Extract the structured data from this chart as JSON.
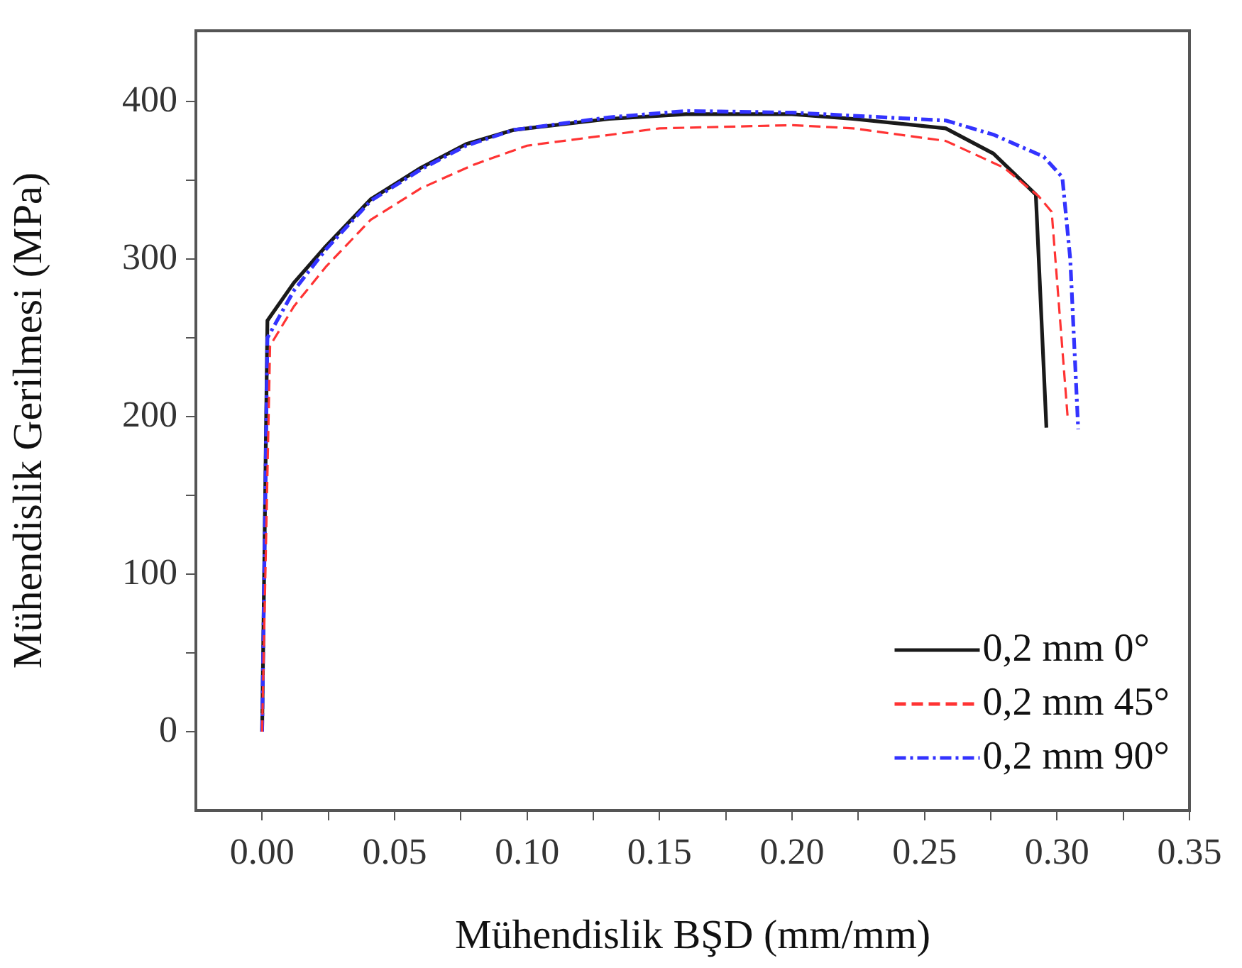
{
  "chart_data": {
    "type": "line",
    "xlabel": "Mühendislik BŞD (mm/mm)",
    "ylabel": "Mühendislik Gerilmesi (MPa)",
    "xlim": [
      -0.025,
      0.35
    ],
    "ylim": [
      -50,
      445
    ],
    "xticks": [
      {
        "value": 0,
        "label": "0.00"
      },
      {
        "value": 0.025,
        "label": null
      },
      {
        "value": 0.05,
        "label": "0.05"
      },
      {
        "value": 0.075,
        "label": null
      },
      {
        "value": 0.1,
        "label": "0.10"
      },
      {
        "value": 0.125,
        "label": null
      },
      {
        "value": 0.15,
        "label": "0.15"
      },
      {
        "value": 0.175,
        "label": null
      },
      {
        "value": 0.2,
        "label": "0.20"
      },
      {
        "value": 0.225,
        "label": null
      },
      {
        "value": 0.25,
        "label": "0.25"
      },
      {
        "value": 0.275,
        "label": null
      },
      {
        "value": 0.3,
        "label": "0.30"
      },
      {
        "value": 0.325,
        "label": null
      },
      {
        "value": 0.35,
        "label": "0.35"
      }
    ],
    "yticks": [
      0,
      {
        "value": 50,
        "label": null
      },
      100,
      {
        "value": 150,
        "label": null
      },
      200,
      {
        "value": 250,
        "label": null
      },
      300,
      {
        "value": 350,
        "label": null
      },
      400
    ],
    "grid": false,
    "legend": "bottom right",
    "marker": "none",
    "series": [
      {
        "name": "0,2 mm 0°",
        "color": "#1a1a1a",
        "line_style": "solid",
        "x": [
          0,
          0.002,
          0.012,
          0.024,
          0.041,
          0.06,
          0.077,
          0.095,
          0.131,
          0.16,
          0.2,
          0.223,
          0.258,
          0.276,
          0.292,
          0.296
        ],
        "values": [
          0,
          261,
          285,
          308,
          338,
          358,
          373,
          382,
          389,
          392,
          392,
          389,
          383,
          367,
          341,
          193
        ]
      },
      {
        "name": "0,2 mm 45°",
        "color": "#ff3333",
        "line_style": "dashed",
        "x": [
          0,
          0.003,
          0.012,
          0.024,
          0.041,
          0.06,
          0.08,
          0.1,
          0.15,
          0.2,
          0.223,
          0.258,
          0.28,
          0.293,
          0.298,
          0.304
        ],
        "values": [
          0,
          245,
          270,
          295,
          325,
          345,
          360,
          372,
          383,
          385,
          383,
          375,
          358,
          340,
          330,
          200
        ]
      },
      {
        "name": "0,2 mm 90°",
        "color": "#3333ff",
        "line_style": "dashdot",
        "x": [
          0,
          0.002,
          0.012,
          0.024,
          0.041,
          0.06,
          0.077,
          0.095,
          0.131,
          0.16,
          0.2,
          0.223,
          0.258,
          0.276,
          0.295,
          0.302,
          0.305,
          0.308
        ],
        "values": [
          0,
          250,
          280,
          306,
          337,
          357,
          372,
          382,
          390,
          394,
          393,
          391,
          388,
          379,
          365,
          352,
          300,
          192
        ]
      }
    ]
  }
}
